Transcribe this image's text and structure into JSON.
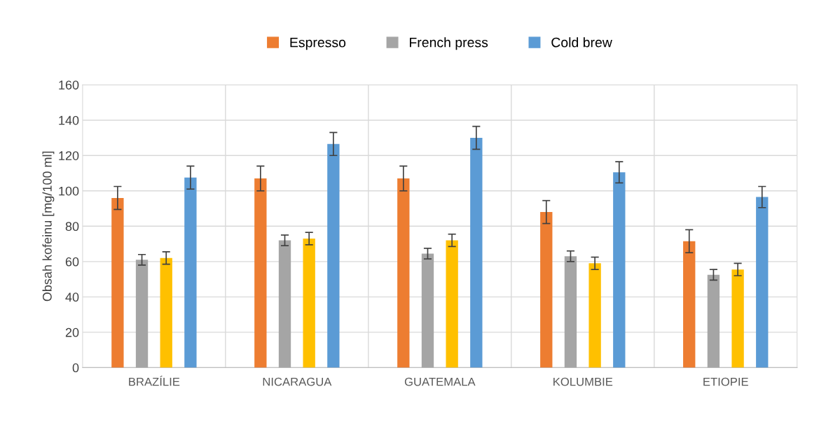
{
  "chart_data": {
    "type": "bar",
    "ylabel": "Obsah kofeinu [mg/100 ml]",
    "categories": [
      "BRAZÍLIE",
      "NICARAGUA",
      "GUATEMALA",
      "KOLUMBIE",
      "ETIOPIE"
    ],
    "series": [
      {
        "name": "Espresso",
        "color": "#ed7d31",
        "values": [
          96,
          107,
          107,
          88,
          71.5
        ],
        "errors": [
          6.5,
          7,
          7,
          6.5,
          6.5
        ]
      },
      {
        "name": "French press",
        "color": "#a5a5a5",
        "values": [
          61,
          72,
          64.5,
          63,
          52.5
        ],
        "errors": [
          3,
          3,
          3,
          3,
          3
        ]
      },
      {
        "color": "#ffc000",
        "values": [
          62,
          73,
          72,
          59,
          55.5
        ],
        "errors": [
          3.5,
          3.5,
          3.5,
          3.5,
          3.5
        ]
      },
      {
        "name": "Cold brew",
        "color": "#5b9bd5",
        "values": [
          107.5,
          126.5,
          130,
          110.5,
          96.5
        ],
        "errors": [
          6.5,
          6.5,
          6.5,
          6,
          6
        ]
      }
    ],
    "ylim": [
      0,
      160
    ],
    "yticks": [
      0,
      20,
      40,
      60,
      80,
      100,
      120,
      140,
      160
    ],
    "grid": true,
    "legend": "top"
  }
}
